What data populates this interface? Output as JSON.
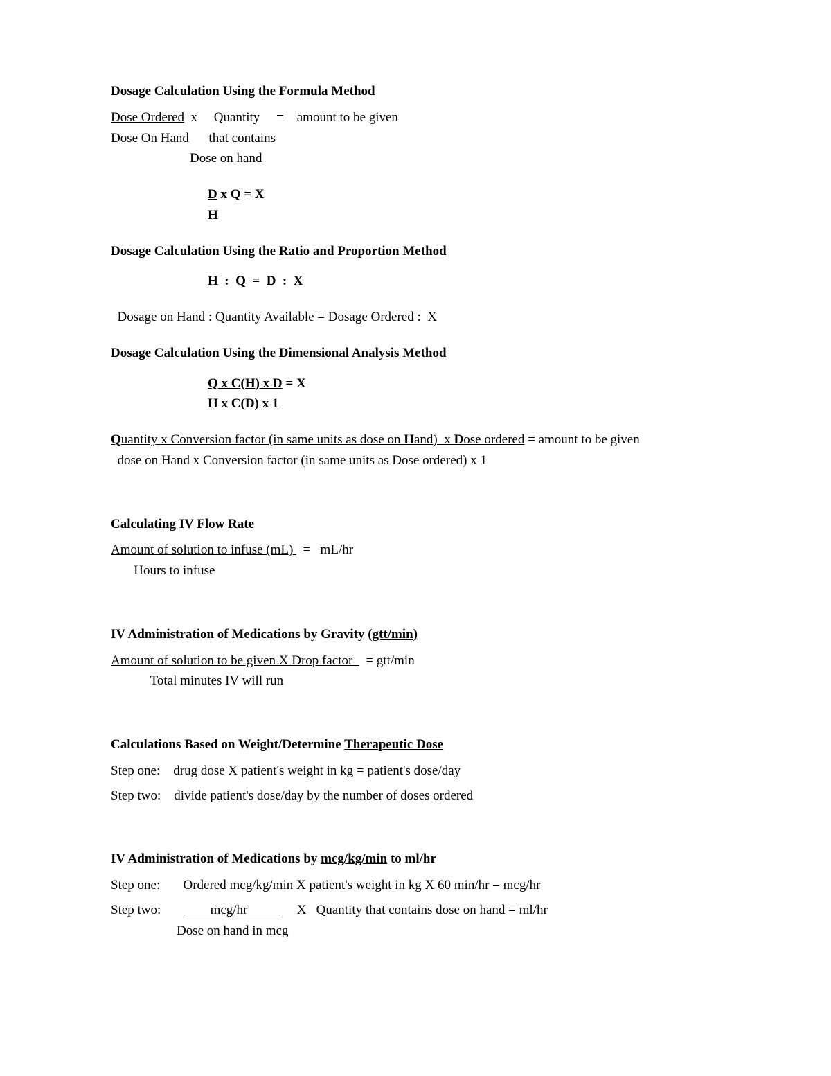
{
  "s1": {
    "title_pre": "Dosage Calculation Using the ",
    "title_u": "Formula Method",
    "l1a": "Dose Ordered",
    "l1b": "  x     Quantity     =    amount to be given",
    "l2": "Dose On Hand      that contains",
    "l3": "                        Dose on hand",
    "f1a": "D",
    "f1b": " x Q = X",
    "f2": "H"
  },
  "s2": {
    "title_pre": "Dosage Calculation Using the ",
    "title_u": "Ratio and Proportion Method",
    "eq": "H  :  Q  =  D  :  X",
    "desc": "  Dosage on Hand : Quantity Available = Dosage Ordered :  X"
  },
  "s3": {
    "title": "Dosage Calculation Using the Dimensional Analysis Method",
    "f1a": "Q x C(H) x D",
    "f1b": " = X",
    "f2": "H x C(D) x 1",
    "d1a": "Q",
    "d1b": "uantity x Conversion factor (in same units as dose on ",
    "d1c": "H",
    "d1d": "and)  x ",
    "d1e": "D",
    "d1f": "ose ordered",
    "d1g": " = amount to be given",
    "d2": "  dose on Hand x Conversion factor (in same units as Dose ordered) x 1"
  },
  "s4": {
    "title_pre": "Calculating ",
    "title_u": "IV Flow Rate",
    "l1a": "Amount of solution to infuse (mL) ",
    "l1b": "  =   mL/hr",
    "l2": "       Hours to infuse"
  },
  "s5": {
    "title_pre": "IV Administration of Medications by Gravity ",
    "title_u": "(gtt/min)",
    "l1a": "Amount of solution to be given X Drop factor  ",
    "l1b": "  = gtt/min",
    "l2": "            Total minutes IV will run"
  },
  "s6": {
    "title_pre": "Calculations Based on Weight/Determine ",
    "title_u": "Therapeutic Dose",
    "step1": "Step one:    drug dose X patient's weight in kg = patient's dose/day",
    "step2": "Step two:    divide patient's dose/day by the number of doses ordered"
  },
  "s7": {
    "title_pre": "IV Administration of Medications by ",
    "title_u": "mcg/kg/min",
    "title_post": " to ml/hr",
    "step1": "Step one:       Ordered mcg/kg/min X patient's weight in kg X 60 min/hr = mcg/hr",
    "s2a": "Step two:       ",
    "s2b": "        mcg/hr          ",
    "s2c": "     X   Quantity that contains dose on hand = ml/hr",
    "s2d": "                    Dose on hand in mcg"
  }
}
